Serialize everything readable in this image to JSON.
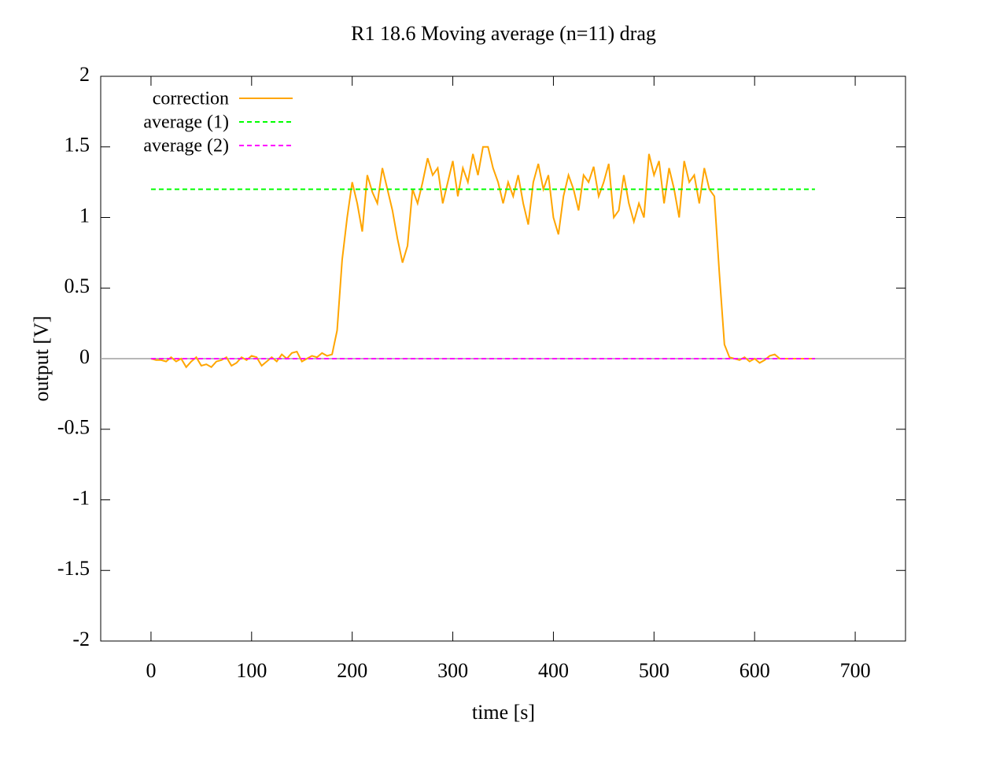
{
  "chart_data": {
    "type": "line",
    "title": "R1 18.6  Moving average (n=11) drag",
    "xlabel": "time [s]",
    "ylabel": "output [V]",
    "xlim": [
      -50,
      750
    ],
    "ylim": [
      -2,
      2
    ],
    "xticks": [
      0,
      100,
      200,
      300,
      400,
      500,
      600,
      700
    ],
    "yticks": [
      -2,
      -1.5,
      -1,
      -0.5,
      0,
      0.5,
      1,
      1.5,
      2
    ],
    "zeroaxis": true,
    "legend": "top-left",
    "series": [
      {
        "name": "correction",
        "color": "#ffa500",
        "dash": false,
        "x": [
          0,
          5,
          10,
          15,
          20,
          25,
          30,
          35,
          40,
          45,
          50,
          55,
          60,
          65,
          70,
          75,
          80,
          85,
          90,
          95,
          100,
          105,
          110,
          115,
          120,
          125,
          130,
          135,
          140,
          145,
          150,
          155,
          160,
          165,
          170,
          175,
          180,
          185,
          190,
          195,
          200,
          205,
          210,
          215,
          220,
          225,
          230,
          235,
          240,
          245,
          250,
          255,
          260,
          265,
          270,
          275,
          280,
          285,
          290,
          295,
          300,
          305,
          310,
          315,
          320,
          325,
          330,
          335,
          340,
          345,
          350,
          355,
          360,
          365,
          370,
          375,
          380,
          385,
          390,
          395,
          400,
          405,
          410,
          415,
          420,
          425,
          430,
          435,
          440,
          445,
          450,
          455,
          460,
          465,
          470,
          475,
          480,
          485,
          490,
          495,
          500,
          505,
          510,
          515,
          520,
          525,
          530,
          535,
          540,
          545,
          550,
          555,
          560,
          565,
          570,
          575,
          580,
          585,
          590,
          595,
          600,
          605,
          610,
          615,
          620,
          625,
          630,
          635,
          640,
          645,
          650,
          655,
          660
        ],
        "values": [
          0,
          -0.01,
          -0.01,
          -0.02,
          0.01,
          -0.02,
          0,
          -0.06,
          -0.02,
          0.01,
          -0.05,
          -0.04,
          -0.06,
          -0.02,
          -0.01,
          0.01,
          -0.05,
          -0.03,
          0.01,
          -0.01,
          0.02,
          0.01,
          -0.05,
          -0.02,
          0.01,
          -0.02,
          0.03,
          0,
          0.04,
          0.05,
          -0.02,
          0,
          0.02,
          0.01,
          0.04,
          0.02,
          0.03,
          0.2,
          0.7,
          1.0,
          1.25,
          1.1,
          0.9,
          1.3,
          1.18,
          1.1,
          1.35,
          1.2,
          1.05,
          0.85,
          0.68,
          0.8,
          1.2,
          1.1,
          1.25,
          1.42,
          1.3,
          1.35,
          1.1,
          1.25,
          1.4,
          1.15,
          1.35,
          1.25,
          1.45,
          1.3,
          1.5,
          1.5,
          1.35,
          1.25,
          1.1,
          1.25,
          1.15,
          1.3,
          1.1,
          0.95,
          1.25,
          1.38,
          1.2,
          1.3,
          1.0,
          0.88,
          1.15,
          1.3,
          1.2,
          1.05,
          1.3,
          1.25,
          1.36,
          1.15,
          1.25,
          1.38,
          1.0,
          1.05,
          1.3,
          1.1,
          0.97,
          1.1,
          1.0,
          1.45,
          1.3,
          1.4,
          1.1,
          1.35,
          1.2,
          1.0,
          1.4,
          1.25,
          1.3,
          1.1,
          1.35,
          1.2,
          1.15,
          0.6,
          0.1,
          0.01,
          0,
          -0.01,
          0.01,
          -0.02,
          0,
          -0.03,
          -0.01,
          0.02,
          0.03,
          0,
          0,
          0,
          0,
          0,
          0,
          0,
          0
        ]
      },
      {
        "name": "average (1)",
        "color": "#00ff00",
        "dash": true,
        "x": [
          0,
          660
        ],
        "values": [
          1.2,
          1.2
        ]
      },
      {
        "name": "average (2)",
        "color": "#ff00ff",
        "dash": true,
        "x": [
          0,
          660
        ],
        "values": [
          0,
          0
        ]
      }
    ]
  }
}
